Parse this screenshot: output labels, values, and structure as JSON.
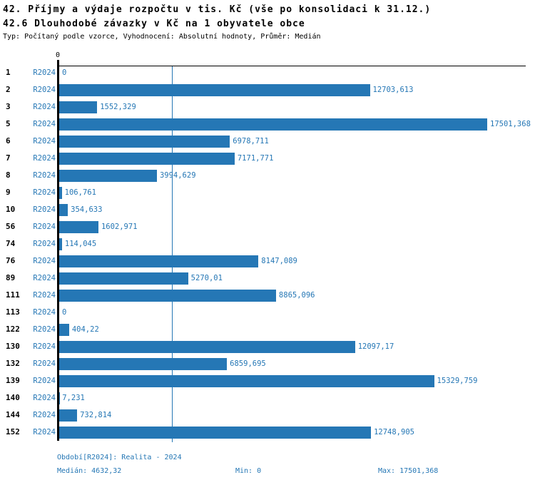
{
  "title": "42. Příjmy a výdaje rozpočtu v tis. Kč (vše po konsolidaci k 31.12.)",
  "subtitle": "42.6 Dlouhodobé závazky v Kč na 1 obyvatele obce",
  "meta_line": "Typ: Počítaný podle vzorce, Vyhodnocení: Absolutní hodnoty, Průměr: Medián",
  "colors": {
    "bar_blue": "#2577B5",
    "axis_black": "#000000",
    "background": "#ffffff"
  },
  "chart_data": {
    "type": "bar",
    "orientation": "horizontal",
    "series_label": "R2024",
    "axis_top_tick_label": "0",
    "xlim": [
      0,
      17501.368
    ],
    "median_value": 4632.32,
    "grid": "median-line-only",
    "categories": [
      "1",
      "2",
      "3",
      "5",
      "6",
      "7",
      "8",
      "9",
      "10",
      "56",
      "74",
      "76",
      "89",
      "111",
      "113",
      "122",
      "130",
      "132",
      "139",
      "140",
      "144",
      "152"
    ],
    "values": [
      0,
      12703.613,
      1552.329,
      17501.368,
      6978.711,
      7171.771,
      3994.629,
      106.761,
      354.633,
      1602.971,
      114.045,
      8147.089,
      5270.01,
      8865.096,
      0,
      404.22,
      12097.17,
      6859.695,
      15329.759,
      7.231,
      732.814,
      12748.905
    ],
    "value_labels": [
      "0",
      "12703,613",
      "1552,329",
      "17501,368",
      "6978,711",
      "7171,771",
      "3994,629",
      "106,761",
      "354,633",
      "1602,971",
      "114,045",
      "8147,089",
      "5270,01",
      "8865,096",
      "0",
      "404,22",
      "12097,17",
      "6859,695",
      "15329,759",
      "7,231",
      "732,814",
      "12748,905"
    ]
  },
  "footer": {
    "period_line": "Období[R2024]: Realita - 2024",
    "median_label": "Medián: 4632,32",
    "min_label": "Min: 0",
    "max_label": "Max: 17501,368"
  }
}
